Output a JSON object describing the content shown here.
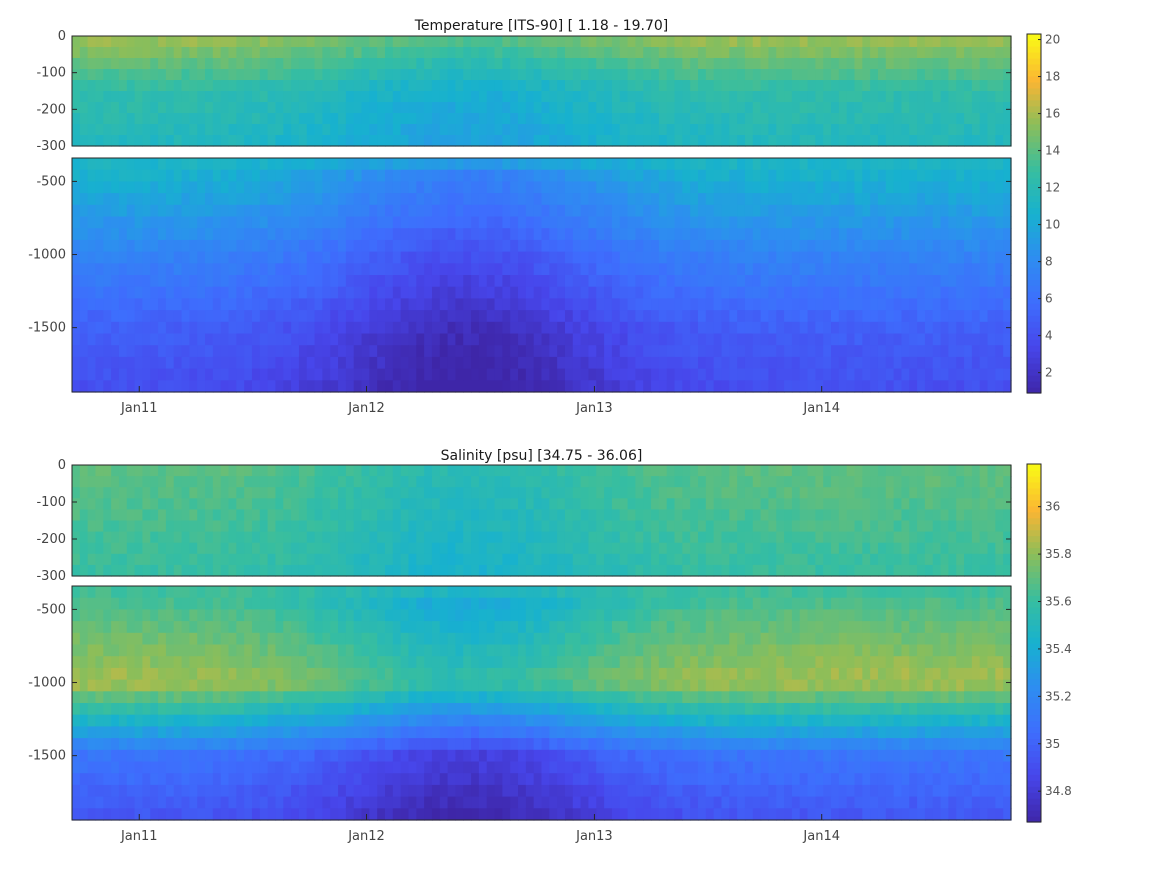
{
  "chart_data": [
    {
      "type": "heatmap",
      "title": "Temperature [ITS-90]   [ 1.18 - 19.70]",
      "variable": "Temperature",
      "units": "ITS-90",
      "value_range": [
        1.18,
        19.7
      ],
      "colormap": "parula",
      "x": {
        "tick_labels": [
          "Jan11",
          "Jan12",
          "Jan13",
          "Jan14"
        ],
        "range": [
          "2010-09-15",
          "2014-11-01"
        ]
      },
      "y_upper": {
        "range": [
          -300,
          0
        ],
        "ticks": [
          0,
          -100,
          -200,
          -300
        ]
      },
      "y_lower": {
        "range": [
          -1940,
          -340
        ],
        "ticks": [
          -500,
          -1000,
          -1500
        ]
      },
      "colorbar": {
        "range": [
          0.9,
          20.3
        ],
        "ticks": [
          2,
          4,
          6,
          8,
          10,
          12,
          14,
          16,
          18,
          20
        ]
      },
      "profile_values": [
        {
          "depth": 0,
          "value": 16
        },
        {
          "depth": -150,
          "value": 12.5
        },
        {
          "depth": -300,
          "value": 11.5
        },
        {
          "depth": -500,
          "value": 10.5
        },
        {
          "depth": -1000,
          "value": 7.5
        },
        {
          "depth": -1500,
          "value": 5
        },
        {
          "depth": -1900,
          "value": 4
        }
      ]
    },
    {
      "type": "heatmap",
      "title": "Salinity [psu]   [34.75 - 36.06]",
      "variable": "Salinity",
      "units": "psu",
      "value_range": [
        34.75,
        36.06
      ],
      "colormap": "parula",
      "x": {
        "tick_labels": [
          "Jan11",
          "Jan12",
          "Jan13",
          "Jan14"
        ],
        "range": [
          "2010-09-15",
          "2014-11-01"
        ]
      },
      "y_upper": {
        "range": [
          -300,
          0
        ],
        "ticks": [
          0,
          -100,
          -200,
          -300
        ]
      },
      "y_lower": {
        "range": [
          -1940,
          -340
        ],
        "ticks": [
          -500,
          -1000,
          -1500
        ]
      },
      "colorbar": {
        "range": [
          34.67,
          36.18
        ],
        "ticks": [
          34.8,
          35,
          35.2,
          35.4,
          35.6,
          35.8,
          36
        ]
      },
      "profile_values": [
        {
          "depth": 0,
          "value": 35.7
        },
        {
          "depth": -300,
          "value": 35.6
        },
        {
          "depth": -1000,
          "value": 35.85
        },
        {
          "depth": -1500,
          "value": 35.1
        },
        {
          "depth": -1900,
          "value": 34.95
        }
      ]
    }
  ]
}
